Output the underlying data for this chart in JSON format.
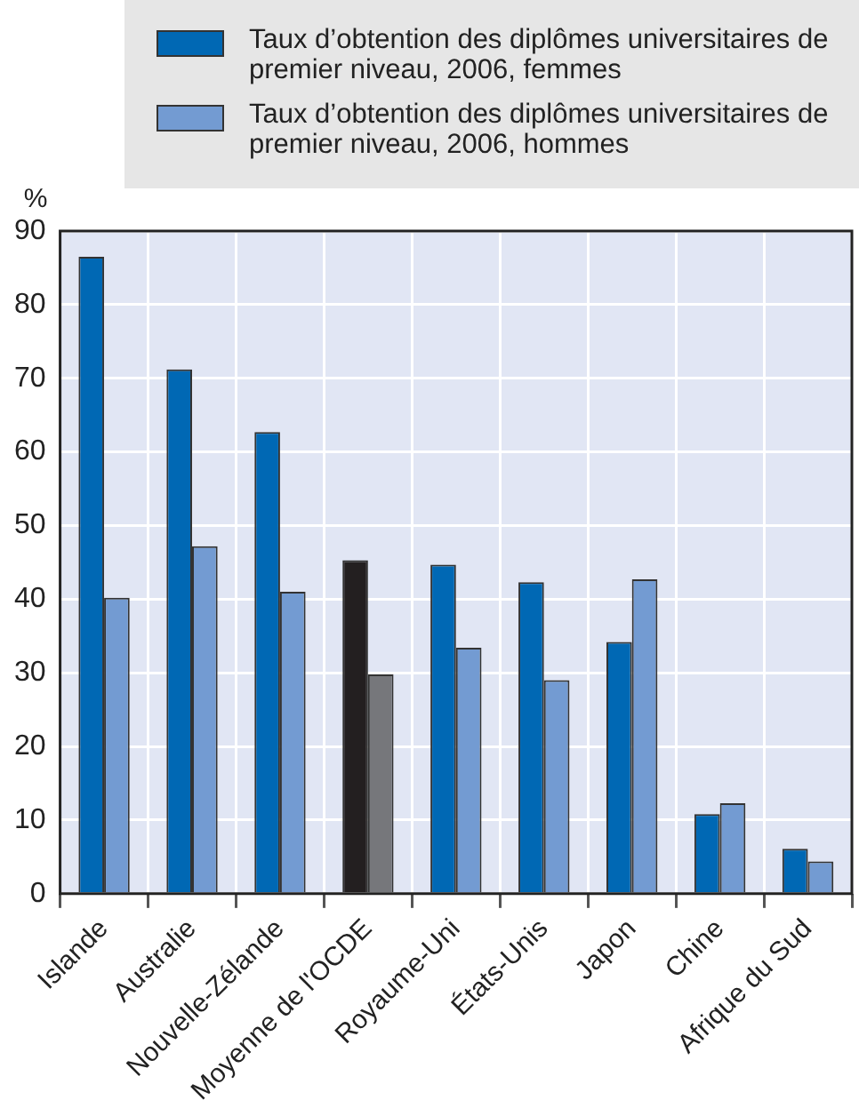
{
  "chart_data": {
    "type": "bar",
    "ylabel": "%",
    "categories": [
      "Islande",
      "Australie",
      "Nouvelle-Zélande",
      "Moyenne de l'OCDE",
      "Royaume-Uni",
      "États-Unis",
      "Japon",
      "Chine",
      "Afrique du Sud"
    ],
    "series": [
      {
        "name": "Taux d’obtention des diplômes universitaires de premier niveau, 2006, femmes",
        "color": "#0068b4",
        "colors": [
          "#0068b4",
          "#0068b4",
          "#0068b4",
          "#231f20",
          "#0068b4",
          "#0068b4",
          "#0068b4",
          "#0068b4",
          "#0068b4"
        ],
        "values": [
          86.5,
          71.2,
          62.7,
          45.3,
          44.7,
          42.3,
          34.2,
          10.8,
          6.1
        ]
      },
      {
        "name": "Taux d’obtention des diplômes universitaires de premier niveau, 2006, hommes",
        "color": "#739bd2",
        "colors": [
          "#739bd2",
          "#739bd2",
          "#739bd2",
          "#76777b",
          "#739bd2",
          "#739bd2",
          "#739bd2",
          "#739bd2",
          "#739bd2"
        ],
        "values": [
          40.2,
          47.2,
          41.0,
          29.8,
          33.4,
          29.0,
          42.7,
          12.3,
          4.4
        ]
      }
    ],
    "ylim": [
      0,
      90
    ],
    "yticks": [
      0,
      10,
      20,
      30,
      40,
      50,
      60,
      70,
      80,
      90
    ],
    "grid": true,
    "legend": "top"
  }
}
